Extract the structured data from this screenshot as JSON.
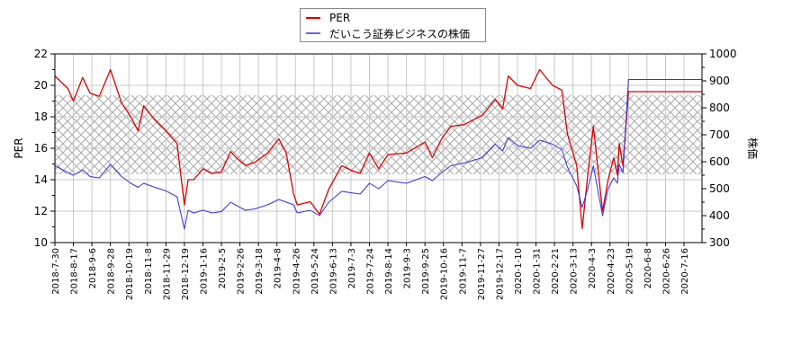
{
  "legend": {
    "items": [
      {
        "label": "PER",
        "color": "#dd0000"
      },
      {
        "label": "だいこう証券ビジネスの株価",
        "color": "#3333dd"
      }
    ]
  },
  "axes": {
    "left_label": "PER",
    "right_label": "株価"
  },
  "chart_data": {
    "type": "line",
    "title": "",
    "xlabel": "",
    "ylabel": "PER",
    "y2label": "株価",
    "ylim": [
      10,
      22
    ],
    "y2lim": [
      300,
      1000
    ],
    "yticks": [
      10,
      12,
      14,
      16,
      18,
      20,
      22
    ],
    "y2ticks": [
      300,
      400,
      500,
      600,
      700,
      800,
      900,
      1000
    ],
    "grid": true,
    "legend_position": "top-center",
    "shaded_band": {
      "y_from": 14.34,
      "y_to": 19.37,
      "axis": "left",
      "style": "crosshatch"
    },
    "x_tick_labels": [
      "2018-7-30",
      "2018-8-17",
      "2018-9-6",
      "2018-9-28",
      "2018-10-19",
      "2018-11-8",
      "2018-11-29",
      "2018-12-19",
      "2019-1-16",
      "2019-2-5",
      "2019-2-26",
      "2019-3-18",
      "2019-4-8",
      "2019-4-26",
      "2019-5-24",
      "2019-6-13",
      "2019-7-3",
      "2019-7-24",
      "2019-8-14",
      "2019-9-3",
      "2019-9-25",
      "2019-10-16",
      "2019-11-7",
      "2019-11-27",
      "2019-12-17",
      "2020-1-10",
      "2020-1-31",
      "2020-2-21",
      "2020-3-13",
      "2020-4-3",
      "2020-4-23",
      "2020-5-19",
      "2020-6-8",
      "2020-6-26",
      "2020-7-16"
    ],
    "x": [
      0,
      0.7,
      1.0,
      1.5,
      1.9,
      2.4,
      3.0,
      3.6,
      4.1,
      4.5,
      4.8,
      5.4,
      6.0,
      6.6,
      7.0,
      7.2,
      7.5,
      8.0,
      8.5,
      9.0,
      9.5,
      9.8,
      10.3,
      10.8,
      11.5,
      12.1,
      12.5,
      12.9,
      13.1,
      13.8,
      14.3,
      14.8,
      15.5,
      16.0,
      16.5,
      17.0,
      17.5,
      18.0,
      19.0,
      20.0,
      20.4,
      20.9,
      21.4,
      22.1,
      23.1,
      23.8,
      24.2,
      24.5,
      25.0,
      25.7,
      26.2,
      26.9,
      27.4,
      27.7,
      28.2,
      28.5,
      28.8,
      29.1,
      29.6,
      29.9,
      30.2,
      30.4,
      30.5,
      30.7,
      31.0,
      33.0,
      35.0
    ],
    "series": [
      {
        "name": "PER",
        "axis": "left",
        "color": "#dd0000",
        "values": [
          20.6,
          19.8,
          19.0,
          20.5,
          19.5,
          19.3,
          21.0,
          18.9,
          18.0,
          17.1,
          18.7,
          17.8,
          17.1,
          16.3,
          12.4,
          14.0,
          14.0,
          14.7,
          14.4,
          14.5,
          15.8,
          15.4,
          14.9,
          15.1,
          15.7,
          16.6,
          15.7,
          13.1,
          12.4,
          12.6,
          11.8,
          13.4,
          14.9,
          14.6,
          14.4,
          15.7,
          14.7,
          15.6,
          15.7,
          16.4,
          15.4,
          16.6,
          17.4,
          17.5,
          18.1,
          19.1,
          18.5,
          20.6,
          20.0,
          19.8,
          21.0,
          20.0,
          19.7,
          16.9,
          14.9,
          10.9,
          14.3,
          17.4,
          12.0,
          14.0,
          15.4,
          14.3,
          16.3,
          14.9,
          19.6,
          19.6,
          19.6
        ]
      },
      {
        "name": "だいこう証券ビジネスの株価",
        "axis": "right",
        "color": "#3333dd",
        "values": [
          585,
          560,
          550,
          570,
          545,
          540,
          590,
          545,
          520,
          505,
          520,
          505,
          492,
          470,
          350,
          420,
          410,
          420,
          410,
          415,
          450,
          438,
          420,
          425,
          440,
          460,
          450,
          440,
          410,
          420,
          400,
          450,
          490,
          485,
          480,
          520,
          500,
          530,
          520,
          545,
          530,
          560,
          585,
          595,
          615,
          665,
          640,
          690,
          660,
          650,
          680,
          665,
          645,
          580,
          510,
          430,
          500,
          585,
          400,
          500,
          540,
          520,
          590,
          560,
          905,
          905,
          905
        ]
      }
    ]
  }
}
